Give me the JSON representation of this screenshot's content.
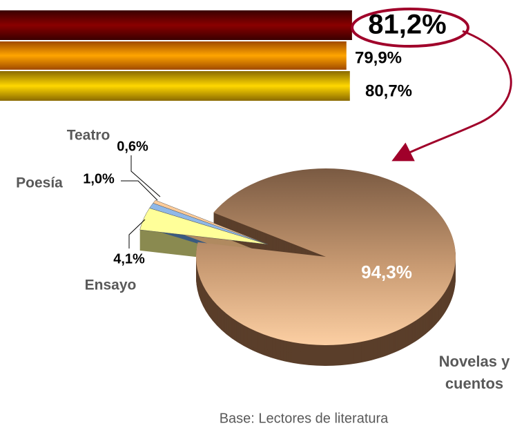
{
  "chart_data": [
    {
      "type": "bar",
      "orientation": "horizontal",
      "values": [
        81.2,
        79.9,
        80.7
      ],
      "value_labels": [
        "81,2%",
        "79,9%",
        "80,7%"
      ],
      "colors": [
        "#7a0000",
        "#f39200",
        "#e6bf00"
      ]
    },
    {
      "type": "pie",
      "categories": [
        "Novelas y cuentos",
        "Ensayo",
        "Poesía",
        "Teatro"
      ],
      "values": [
        94.3,
        4.1,
        1.0,
        0.6
      ],
      "value_labels": [
        "94,3%",
        "4,1%",
        "1,0%",
        "0,6%"
      ],
      "colors": [
        "#d9a47a",
        "#ffff99",
        "#8fb8e8",
        "#ffcc99"
      ],
      "note": "Base: Lectores de literatura"
    }
  ]
}
